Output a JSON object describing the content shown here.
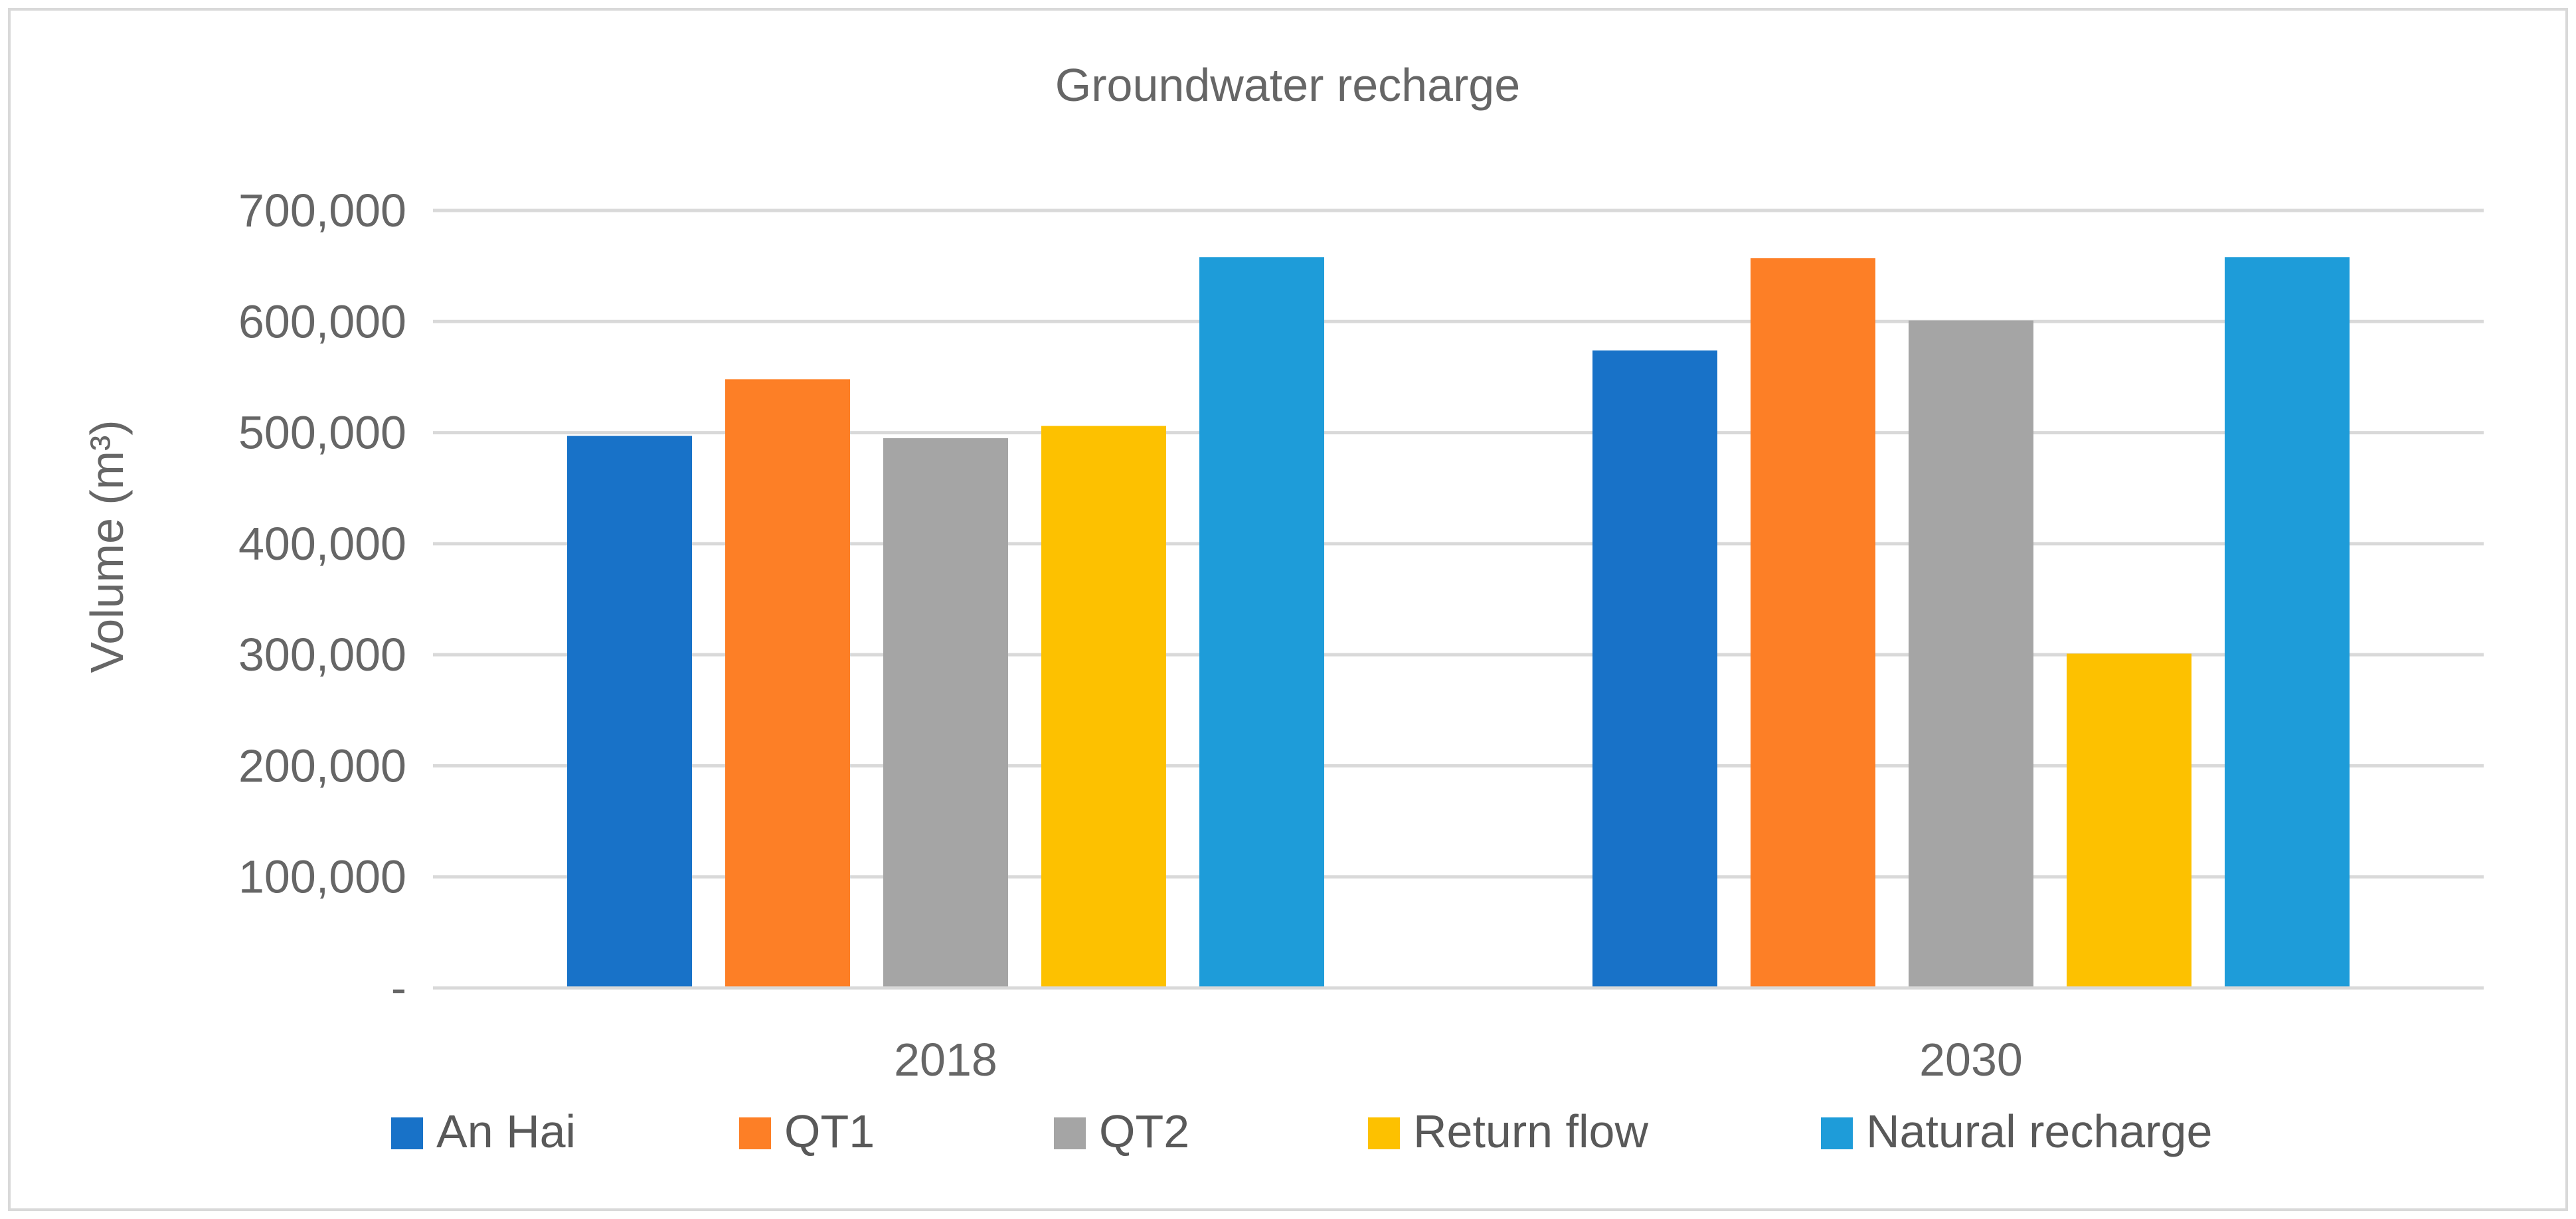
{
  "chart_data": {
    "type": "bar",
    "title": "Groundwater recharge",
    "xlabel": "",
    "ylabel": "Volume (m³)",
    "ylim": [
      0,
      700000
    ],
    "y_ticks": [
      0,
      100000,
      200000,
      300000,
      400000,
      500000,
      600000,
      700000
    ],
    "y_tick_labels": [
      "-",
      "100,000",
      "200,000",
      "300,000",
      "400,000",
      "500,000",
      "600,000",
      "700,000"
    ],
    "categories": [
      "2018",
      "2030"
    ],
    "series": [
      {
        "name": "An Hai",
        "color": "#1872c8",
        "values": [
          497000,
          574000
        ]
      },
      {
        "name": "QT1",
        "color": "#fd7f26",
        "values": [
          548000,
          657000
        ]
      },
      {
        "name": "QT2",
        "color": "#a5a5a5",
        "values": [
          495000,
          601000
        ]
      },
      {
        "name": "Return flow",
        "color": "#fdc100",
        "values": [
          506000,
          301000
        ]
      },
      {
        "name": "Natural recharge",
        "color": "#1e9cd9",
        "values": [
          658000,
          658000
        ]
      }
    ],
    "grid": true,
    "legend_position": "bottom"
  }
}
